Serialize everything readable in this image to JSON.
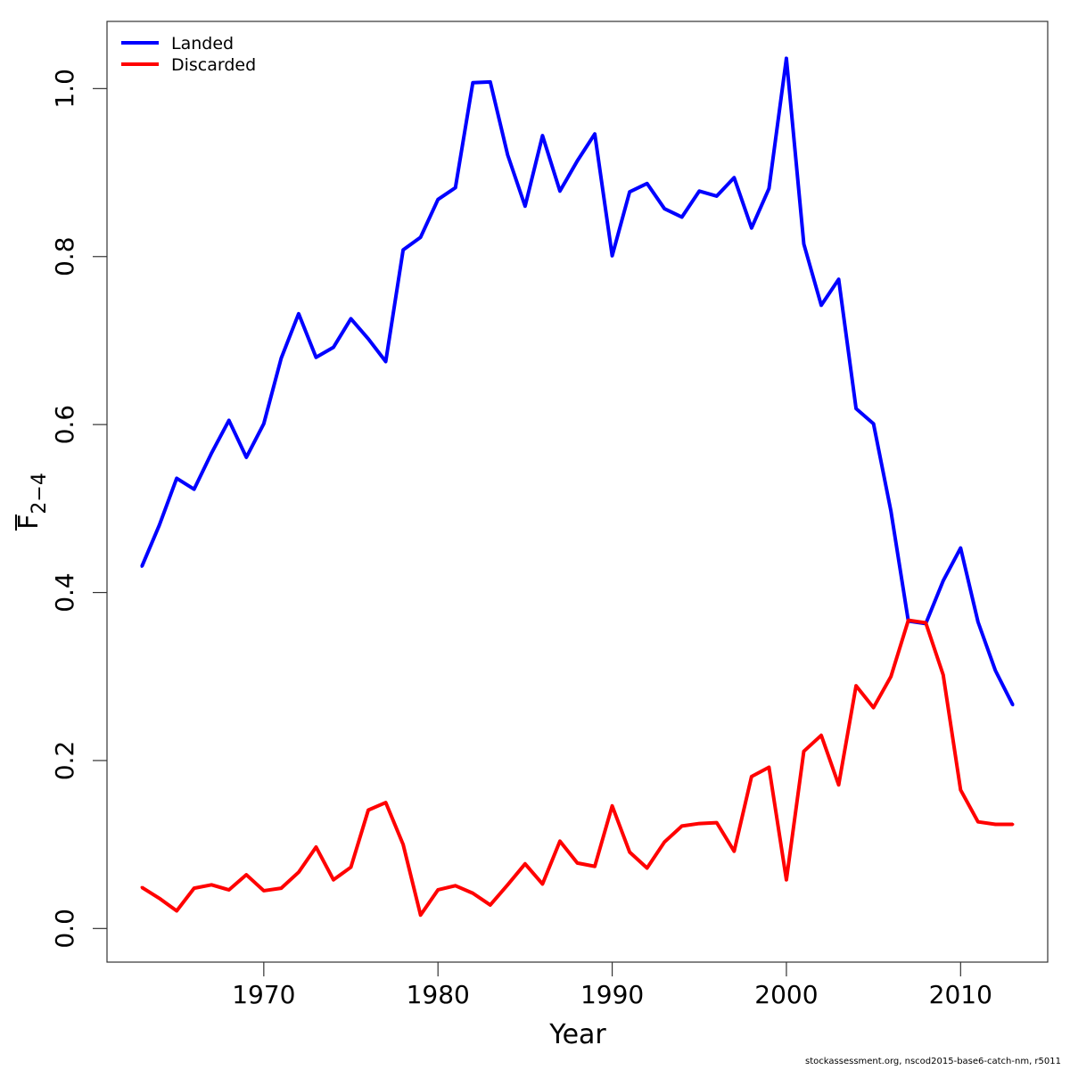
{
  "chart_data": {
    "type": "line",
    "xlabel": "Year",
    "ylabel_main": "F",
    "ylabel_sub": "2−4",
    "xlim": [
      1961,
      2015
    ],
    "ylim": [
      -0.04,
      1.08
    ],
    "xticks": [
      1970,
      1980,
      1990,
      2000,
      2010
    ],
    "yticks": [
      0.0,
      0.2,
      0.4,
      0.6,
      0.8,
      1.0
    ],
    "ytick_labels": [
      "0.0",
      "0.2",
      "0.4",
      "0.6",
      "0.8",
      "1.0"
    ],
    "legend_position": "top-left",
    "x": [
      1963,
      1964,
      1965,
      1966,
      1967,
      1968,
      1969,
      1970,
      1971,
      1972,
      1973,
      1974,
      1975,
      1976,
      1977,
      1978,
      1979,
      1980,
      1981,
      1982,
      1983,
      1984,
      1985,
      1986,
      1987,
      1988,
      1989,
      1990,
      1991,
      1992,
      1993,
      1994,
      1995,
      1996,
      1997,
      1998,
      1999,
      2000,
      2001,
      2002,
      2003,
      2004,
      2005,
      2006,
      2007,
      2008,
      2009,
      2010,
      2011,
      2012,
      2013
    ],
    "series": [
      {
        "name": "Landed",
        "color": "#0000ff",
        "values": [
          0.431,
          0.48,
          0.536,
          0.523,
          0.566,
          0.605,
          0.561,
          0.601,
          0.679,
          0.732,
          0.68,
          0.692,
          0.726,
          0.702,
          0.675,
          0.808,
          0.823,
          0.868,
          0.882,
          1.007,
          1.008,
          0.921,
          0.86,
          0.944,
          0.878,
          0.914,
          0.946,
          0.801,
          0.877,
          0.887,
          0.857,
          0.847,
          0.878,
          0.872,
          0.894,
          0.834,
          0.881,
          1.036,
          0.815,
          0.742,
          0.773,
          0.619,
          0.601,
          0.497,
          0.366,
          0.363,
          0.414,
          0.453,
          0.365,
          0.307,
          0.266
        ]
      },
      {
        "name": "Discarded",
        "color": "#ff0000",
        "values": [
          0.049,
          0.036,
          0.021,
          0.048,
          0.052,
          0.046,
          0.064,
          0.045,
          0.048,
          0.067,
          0.097,
          0.058,
          0.073,
          0.141,
          0.15,
          0.1,
          0.016,
          0.046,
          0.051,
          0.042,
          0.028,
          0.052,
          0.077,
          0.053,
          0.104,
          0.078,
          0.074,
          0.146,
          0.091,
          0.072,
          0.103,
          0.122,
          0.125,
          0.126,
          0.092,
          0.181,
          0.192,
          0.058,
          0.211,
          0.23,
          0.171,
          0.289,
          0.263,
          0.3,
          0.367,
          0.364,
          0.302,
          0.165,
          0.127,
          0.124,
          0.124
        ]
      }
    ]
  },
  "footer": "stockassessment.org, nscod2015-base6-catch-nm, r5011"
}
